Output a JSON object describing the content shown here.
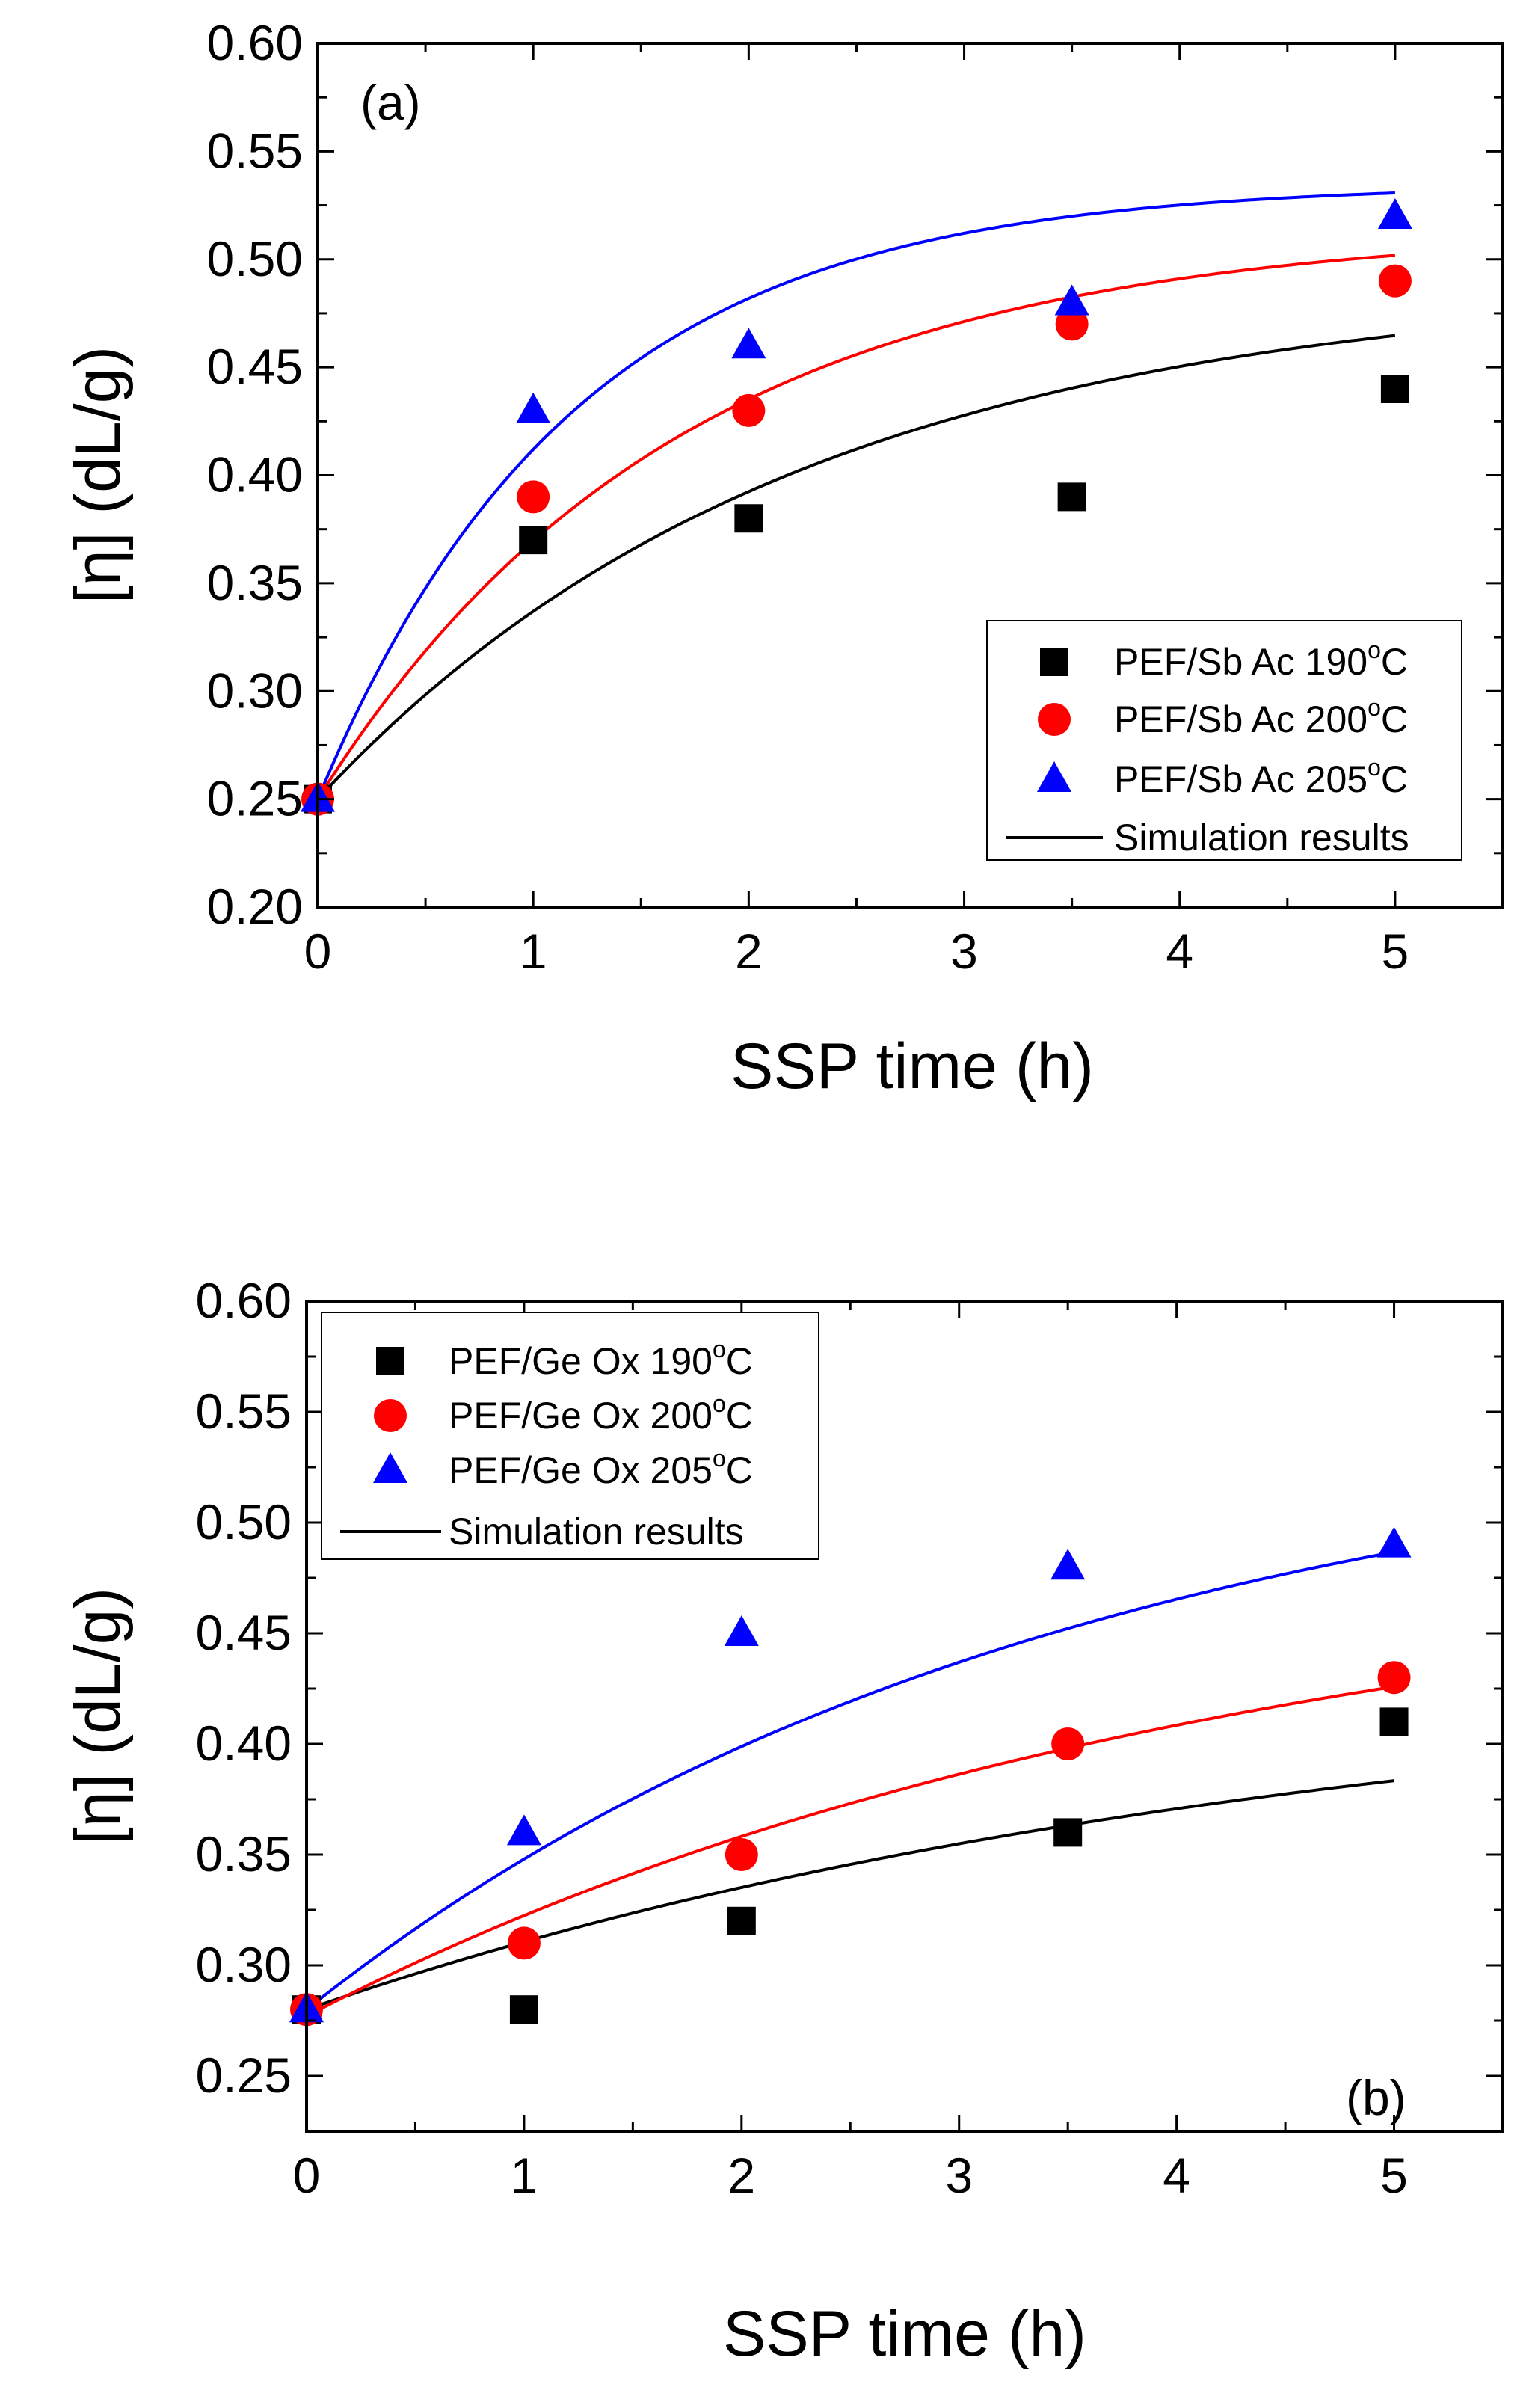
{
  "chart_data": [
    {
      "type": "scatter",
      "panel_label": "(a)",
      "xlabel": "SSP time (h)",
      "ylabel": "[η] (dL/g)",
      "xlim": [
        0,
        5.5
      ],
      "ylim": [
        0.2,
        0.6
      ],
      "x_ticks": [
        0,
        1,
        2,
        3,
        4,
        5
      ],
      "x_tick_labels": [
        "0",
        "1",
        "2",
        "3",
        "4",
        "5"
      ],
      "y_ticks": [
        0.2,
        0.25,
        0.3,
        0.35,
        0.4,
        0.45,
        0.5,
        0.55,
        0.6
      ],
      "y_tick_labels": [
        "0.20",
        "0.25",
        "0.30",
        "0.35",
        "0.40",
        "0.45",
        "0.50",
        "0.55",
        "0.60"
      ],
      "legend_position": "bottom-right",
      "series": [
        {
          "name": "PEF/Sb Ac 190",
          "unit_sup": "o",
          "unit": "C",
          "marker": "square",
          "color": "#000000",
          "x": [
            0,
            1,
            2,
            3.5,
            5
          ],
          "y": [
            0.25,
            0.37,
            0.38,
            0.39,
            0.44
          ]
        },
        {
          "name": "PEF/Sb Ac 200",
          "unit_sup": "o",
          "unit": "C",
          "marker": "circle",
          "color": "#ff0000",
          "x": [
            0,
            1,
            2,
            3.5,
            5
          ],
          "y": [
            0.25,
            0.39,
            0.43,
            0.47,
            0.49
          ]
        },
        {
          "name": "PEF/Sb Ac 205",
          "unit_sup": "o",
          "unit": "C",
          "marker": "triangle",
          "color": "#0000ff",
          "x": [
            0,
            1,
            2,
            3.5,
            5
          ],
          "y": [
            0.25,
            0.43,
            0.46,
            0.48,
            0.52
          ]
        }
      ],
      "simulation": {
        "name": "Simulation results",
        "curves": [
          {
            "color": "#000000",
            "y0": 0.25,
            "yinf": 0.49,
            "k": 0.45
          },
          {
            "color": "#ff0000",
            "y0": 0.25,
            "yinf": 0.515,
            "k": 0.6
          },
          {
            "color": "#0000ff",
            "y0": 0.25,
            "yinf": 0.535,
            "k": 0.84
          }
        ]
      }
    },
    {
      "type": "scatter",
      "panel_label": "(b)",
      "xlabel": "SSP time (h)",
      "ylabel": "[η] (dL/g)",
      "xlim": [
        0,
        5.5
      ],
      "ylim": [
        0.225,
        0.6
      ],
      "x_ticks": [
        0,
        1,
        2,
        3,
        4,
        5
      ],
      "x_tick_labels": [
        "0",
        "1",
        "2",
        "3",
        "4",
        "5"
      ],
      "y_ticks": [
        0.25,
        0.3,
        0.35,
        0.4,
        0.45,
        0.5,
        0.55,
        0.6
      ],
      "y_tick_labels": [
        "0.25",
        "0.30",
        "0.35",
        "0.40",
        "0.45",
        "0.50",
        "0.55",
        "0.60"
      ],
      "legend_position": "top-left",
      "series": [
        {
          "name": "PEF/Ge Ox 190",
          "unit_sup": "o",
          "unit": "C",
          "marker": "square",
          "color": "#000000",
          "x": [
            0,
            1,
            2,
            3.5,
            5
          ],
          "y": [
            0.28,
            0.28,
            0.32,
            0.36,
            0.41
          ]
        },
        {
          "name": "PEF/Ge Ox 200",
          "unit_sup": "o",
          "unit": "C",
          "marker": "circle",
          "color": "#ff0000",
          "x": [
            0,
            1,
            2,
            3.5,
            5
          ],
          "y": [
            0.28,
            0.31,
            0.35,
            0.4,
            0.43
          ]
        },
        {
          "name": "PEF/Ge Ox 205",
          "unit_sup": "o",
          "unit": "C",
          "marker": "triangle",
          "color": "#0000ff",
          "x": [
            0,
            1,
            2,
            3.5,
            5
          ],
          "y": [
            0.28,
            0.36,
            0.45,
            0.48,
            0.49
          ]
        }
      ],
      "simulation": {
        "name": "Simulation results",
        "curves": [
          {
            "color": "#000000",
            "y0": 0.28,
            "yinf": 0.435,
            "k": 0.22
          },
          {
            "color": "#ff0000",
            "y0": 0.277,
            "yinf": 0.49,
            "k": 0.24
          },
          {
            "color": "#0000ff",
            "y0": 0.28,
            "yinf": 0.55,
            "k": 0.29
          }
        ]
      }
    }
  ]
}
